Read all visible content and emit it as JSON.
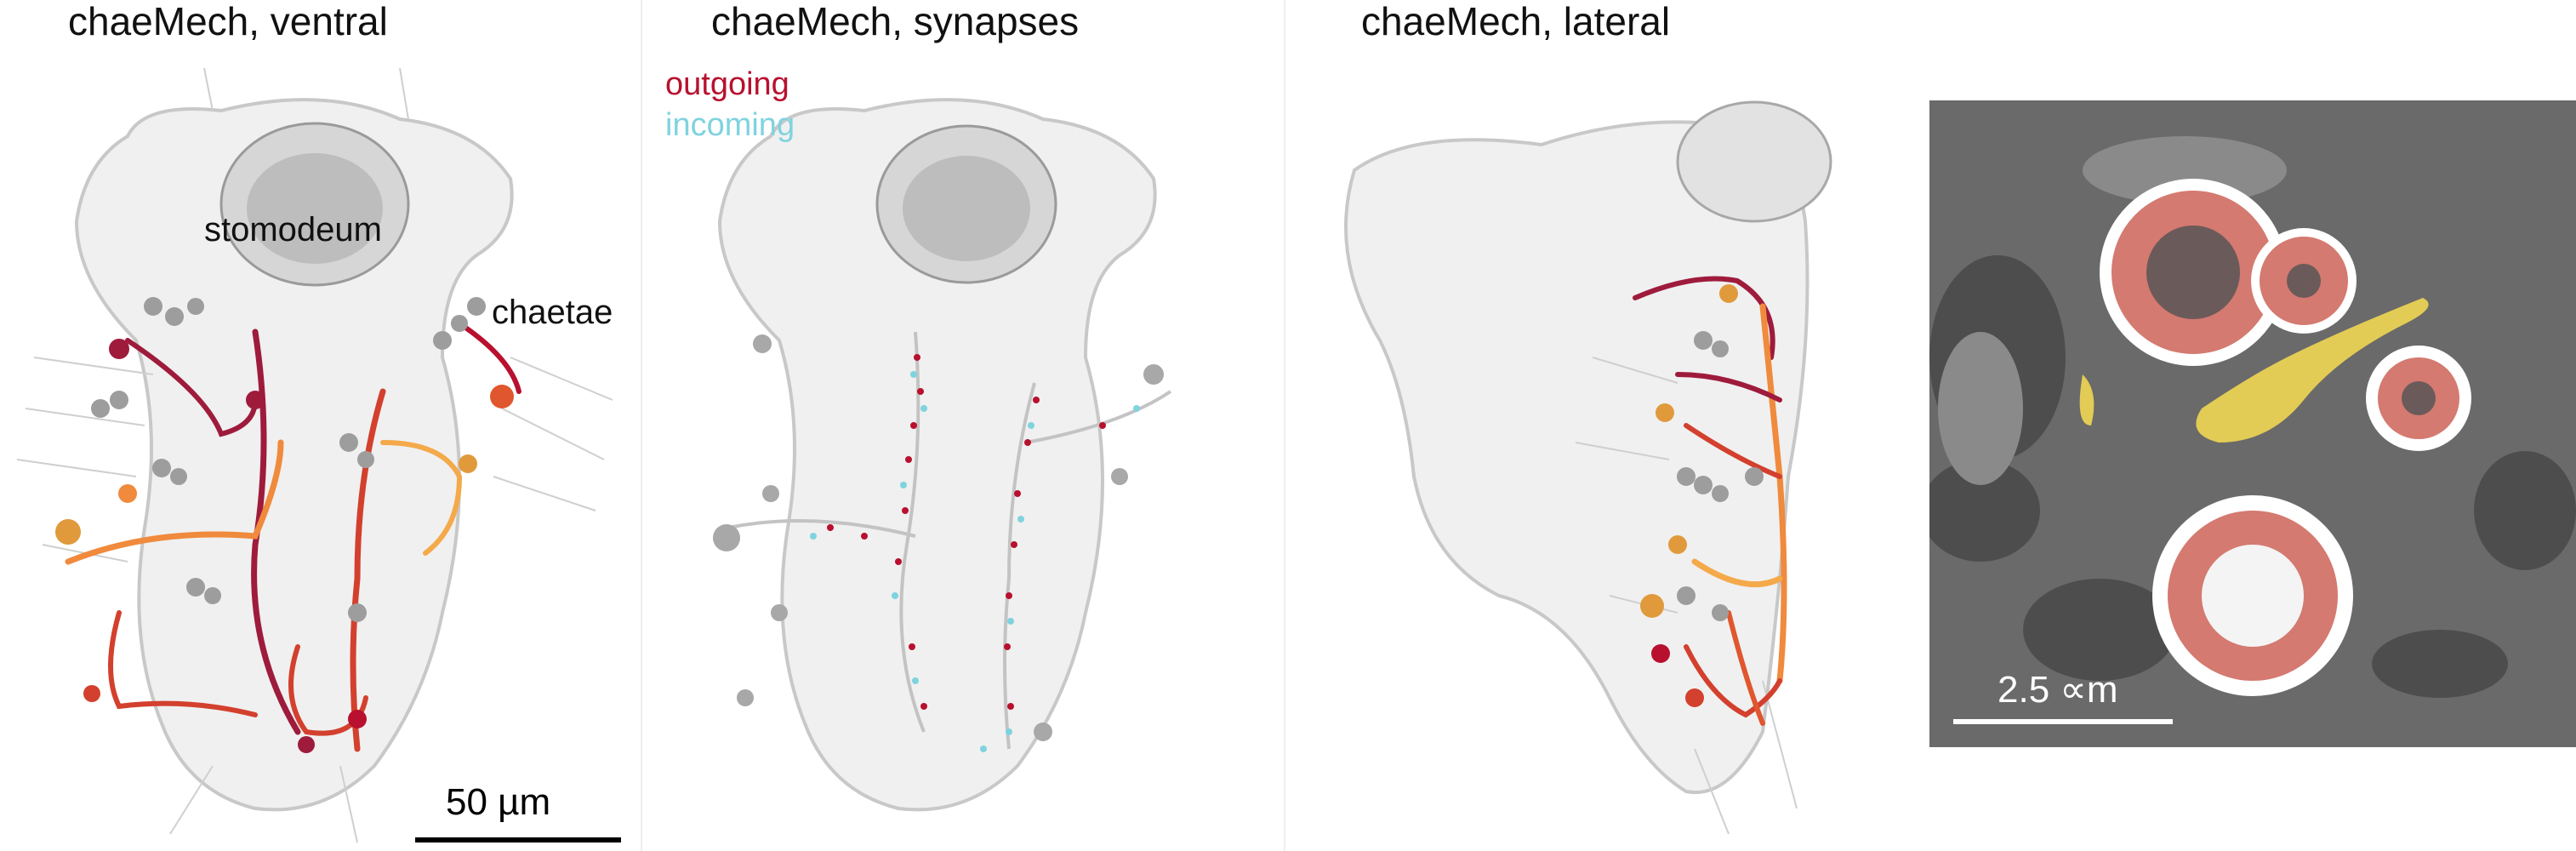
{
  "panels": {
    "ventral": {
      "title": "chaeMech, ventral",
      "labels": {
        "stomodeum": "stomodeum",
        "chaetae": "chaetae"
      },
      "scale_bar": "50 µm"
    },
    "synapses": {
      "title": "chaeMech, synapses",
      "legend": {
        "outgoing": "outgoing",
        "incoming": "incoming"
      }
    },
    "lateral": {
      "title": "chaeMech, lateral"
    },
    "em": {
      "scale_bar": "2.5 ∝m"
    }
  },
  "colors": {
    "outgoing": "#b8102e",
    "incoming": "#7fd3df",
    "neuron_dark_red": "#9e1b3c",
    "neuron_red": "#d3402e",
    "neuron_orange": "#f08a3c",
    "neuron_light_orange": "#f4a94a",
    "body_outline": "#cccccc",
    "em_highlight_red": "#d47a70",
    "em_highlight_yellow": "#e3cc55"
  }
}
